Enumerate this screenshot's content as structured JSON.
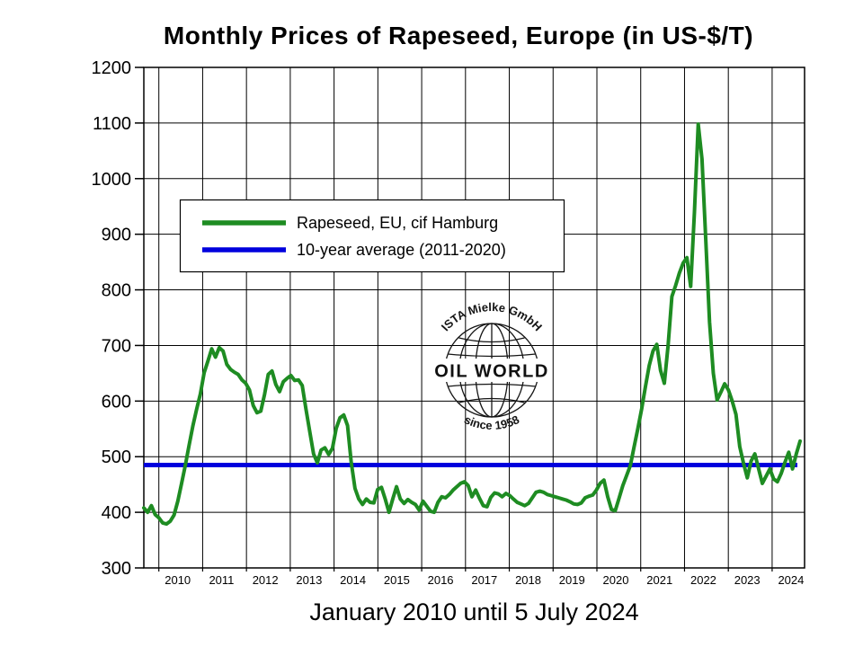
{
  "title": "Monthly Prices of Rapeseed, Europe (in US-$/T)",
  "caption": "January 2010 until 5 July 2024",
  "legend": {
    "series1": "Rapeseed, EU, cif Hamburg",
    "series2": "10-year average (2011-2020)"
  },
  "watermark": {
    "top": "ISTA Mielke GmbH",
    "center": "OIL WORLD",
    "bottom": "since 1958"
  },
  "colors": {
    "rapeseed_line": "#1e8c22",
    "average_line": "#0000dd",
    "grid": "#000000",
    "background": "#ffffff"
  },
  "chart_data": {
    "type": "line",
    "title": "Monthly Prices of Rapeseed, Europe (in US-$/T)",
    "subtitle": "January 2010 until 5 July 2024",
    "xlabel": "",
    "ylabel": "",
    "ylim": [
      300,
      1200
    ],
    "y_ticks": [
      300,
      400,
      500,
      600,
      700,
      800,
      900,
      1000,
      1100,
      1200
    ],
    "x_tick_labels": [
      "2010",
      "2011",
      "2012",
      "2013",
      "2014",
      "2015",
      "2016",
      "2017",
      "2018",
      "2019",
      "2020",
      "2021",
      "2022",
      "2023",
      "2024"
    ],
    "x_start": "2010-01",
    "x_end": "2024-07",
    "grid": true,
    "legend_position": "upper-left-inside",
    "series": [
      {
        "name": "Rapeseed, EU, cif Hamburg",
        "color": "#1e8c22",
        "unit": "US-$/T",
        "frequency": "monthly",
        "monthly_values": [
          408,
          400,
          412,
          396,
          390,
          381,
          379,
          384,
          395,
          420,
          452,
          484,
          520,
          555,
          585,
          613,
          651,
          672,
          694,
          679,
          696,
          690,
          666,
          657,
          652,
          648,
          638,
          632,
          620,
          592,
          579,
          582,
          612,
          648,
          654,
          630,
          617,
          635,
          641,
          646,
          637,
          638,
          628,
          585,
          545,
          505,
          489,
          512,
          516,
          504,
          515,
          551,
          570,
          575,
          556,
          490,
          443,
          424,
          414,
          424,
          418,
          417,
          441,
          445,
          424,
          400,
          424,
          446,
          424,
          416,
          423,
          418,
          414,
          404,
          420,
          411,
          402,
          400,
          418,
          428,
          426,
          432,
          440,
          446,
          452,
          455,
          448,
          428,
          440,
          425,
          412,
          410,
          427,
          435,
          433,
          428,
          434,
          430,
          424,
          418,
          415,
          412,
          416,
          426,
          436,
          438,
          436,
          432,
          430,
          428,
          426,
          424,
          422,
          419,
          415,
          414,
          417,
          426,
          429,
          431,
          440,
          452,
          458,
          428,
          405,
          403,
          425,
          448,
          466,
          484,
          518,
          551,
          586,
          626,
          664,
          690,
          702,
          655,
          632,
          700,
          788,
          808,
          830,
          848,
          858,
          806,
          940,
          1098,
          1035,
          890,
          742,
          650,
          602,
          616,
          631,
          620,
          600,
          576,
          518,
          488,
          462,
          492,
          505,
          478,
          452,
          465,
          478,
          460,
          455,
          470,
          490,
          508,
          478,
          505,
          528
        ]
      },
      {
        "name": "10-year average (2011-2020)",
        "color": "#0000dd",
        "type": "horizontal-reference",
        "value": 485
      }
    ]
  }
}
